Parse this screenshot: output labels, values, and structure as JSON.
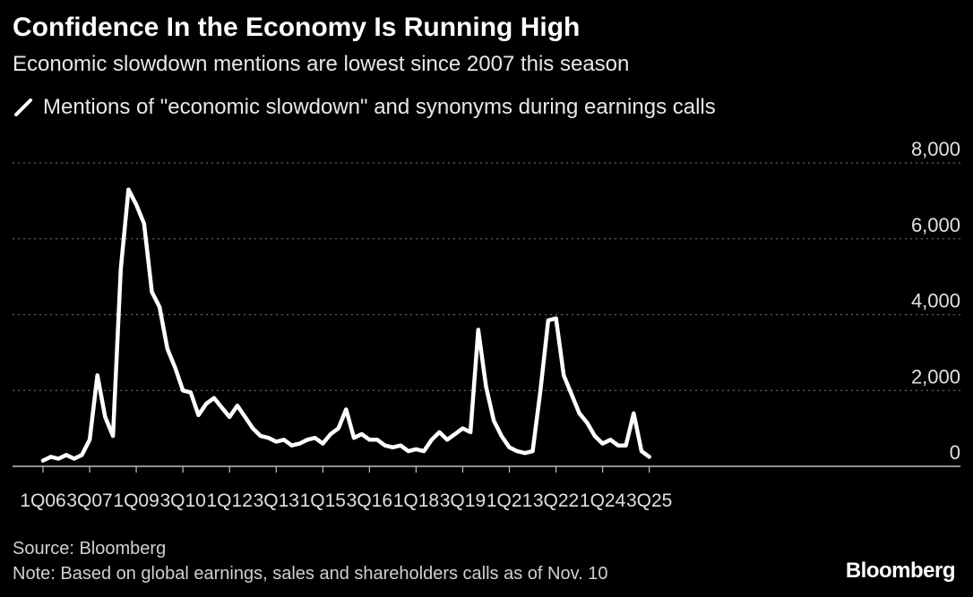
{
  "chart_data": {
    "type": "line",
    "title": "Confidence In the Economy Is Running High",
    "subtitle": "Economic slowdown mentions are lowest since 2007 this season",
    "series": [
      {
        "name": "Mentions of \"economic slowdown\" and synonyms during earnings calls",
        "color": "#ffffff",
        "values": [
          150,
          250,
          200,
          300,
          200,
          300,
          700,
          2400,
          1300,
          800,
          5200,
          7300,
          6900,
          6400,
          4600,
          4200,
          3100,
          2600,
          2000,
          1950,
          1350,
          1650,
          1800,
          1550,
          1300,
          1600,
          1300,
          1000,
          800,
          750,
          650,
          700,
          550,
          600,
          700,
          750,
          600,
          850,
          1000,
          1500,
          750,
          850,
          700,
          700,
          550,
          500,
          550,
          400,
          450,
          400,
          700,
          900,
          700,
          850,
          1000,
          900,
          3600,
          2100,
          1200,
          800,
          500,
          400,
          350,
          400,
          2000,
          3850,
          3900,
          2400,
          1900,
          1400,
          1150,
          800,
          600,
          700,
          550,
          550,
          1400,
          400,
          250
        ]
      }
    ],
    "x_start": "1Q06",
    "x_end": "3Q25",
    "x_ticks": [
      "1Q06",
      "3Q07",
      "1Q09",
      "3Q10",
      "1Q12",
      "3Q13",
      "1Q15",
      "3Q16",
      "1Q18",
      "3Q19",
      "1Q21",
      "3Q22",
      "1Q24",
      "3Q25"
    ],
    "y_ticks": [
      0,
      2000,
      4000,
      6000,
      8000
    ],
    "y_tick_labels": [
      "0",
      "2,000",
      "4,000",
      "6,000",
      "8,000"
    ],
    "ylim": [
      0,
      8000
    ],
    "grid": "horizontal dotted",
    "legend_position": "top-left",
    "background": "#000000"
  },
  "source": "Source: Bloomberg",
  "note": "Note: Based on global earnings, sales and shareholders calls as of Nov. 10",
  "logo": "Bloomberg"
}
